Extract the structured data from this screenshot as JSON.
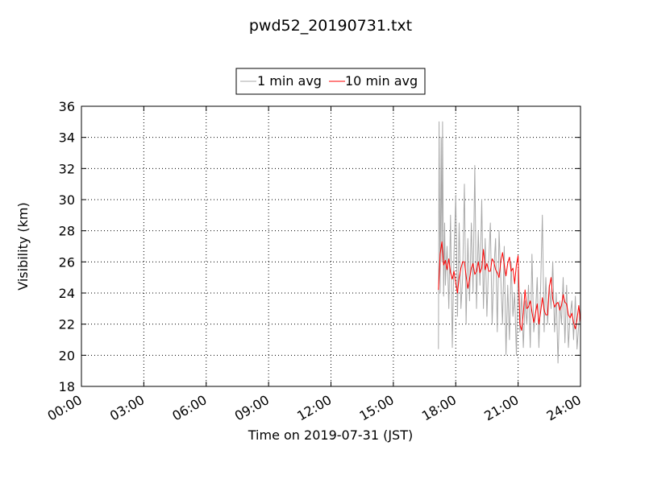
{
  "chart_data": {
    "type": "line",
    "title": "pwd52_20190731.txt",
    "xlabel": "Time on 2019-07-31 (JST)",
    "ylabel": "Visibility (km)",
    "xlim": [
      "00:00",
      "24:00"
    ],
    "ylim": [
      18,
      36
    ],
    "x_ticks": [
      "00:00",
      "03:00",
      "06:00",
      "09:00",
      "12:00",
      "15:00",
      "18:00",
      "21:00",
      "24:00"
    ],
    "y_ticks": [
      "18",
      "20",
      "22",
      "24",
      "26",
      "28",
      "30",
      "32",
      "34",
      "36"
    ],
    "grid": true,
    "legend_position": "top-center, above plot",
    "series": [
      {
        "name": "1 min avg",
        "color": "#a9a9a9",
        "x": [
          "17:10",
          "17:12",
          "17:15",
          "17:18",
          "17:20",
          "17:22",
          "17:25",
          "17:28",
          "17:30",
          "17:35",
          "17:40",
          "17:45",
          "17:50",
          "17:55",
          "18:00",
          "18:05",
          "18:10",
          "18:15",
          "18:20",
          "18:25",
          "18:30",
          "18:35",
          "18:40",
          "18:45",
          "18:50",
          "18:55",
          "19:00",
          "19:05",
          "19:10",
          "19:15",
          "19:20",
          "19:25",
          "19:30",
          "19:35",
          "19:40",
          "19:45",
          "19:50",
          "19:55",
          "20:00",
          "20:05",
          "20:10",
          "20:15",
          "20:20",
          "20:25",
          "20:30",
          "20:35",
          "20:40",
          "20:45",
          "20:50",
          "20:55",
          "21:00",
          "21:05",
          "21:10",
          "21:15",
          "21:20",
          "21:25",
          "21:30",
          "21:35",
          "21:40",
          "21:45",
          "21:50",
          "21:55",
          "22:00",
          "22:05",
          "22:10",
          "22:15",
          "22:20",
          "22:25",
          "22:30",
          "22:35",
          "22:40",
          "22:45",
          "22:50",
          "22:55",
          "23:00",
          "23:05",
          "23:10",
          "23:15",
          "23:20",
          "23:25",
          "23:30",
          "23:35",
          "23:40",
          "23:45",
          "23:50",
          "23:55",
          "24:00"
        ],
        "y": [
          20.4,
          35.0,
          24.0,
          34.0,
          26.0,
          35.0,
          23.8,
          28.5,
          24.5,
          27.0,
          23.0,
          29.0,
          20.5,
          26.5,
          30.3,
          22.5,
          28.5,
          23.0,
          25.0,
          31.0,
          22.0,
          27.5,
          23.5,
          28.5,
          24.0,
          32.2,
          23.0,
          28.0,
          24.5,
          30.0,
          23.0,
          27.5,
          22.5,
          26.0,
          28.5,
          22.0,
          25.5,
          27.5,
          21.5,
          28.0,
          25.0,
          22.0,
          27.0,
          20.0,
          24.5,
          21.0,
          26.0,
          22.5,
          24.0,
          20.0,
          25.5,
          21.5,
          24.0,
          20.5,
          23.5,
          22.0,
          24.5,
          20.5,
          26.5,
          21.5,
          22.5,
          25.0,
          20.5,
          24.5,
          29.0,
          21.5,
          25.0,
          22.0,
          24.5,
          23.0,
          26.0,
          21.5,
          24.0,
          19.5,
          23.5,
          22.0,
          25.0,
          20.8,
          24.5,
          20.5,
          22.5,
          23.5,
          21.0,
          23.8,
          20.4,
          22.0,
          23.0
        ]
      },
      {
        "name": "10 min avg",
        "color": "#ff0000",
        "x": [
          "17:10",
          "17:15",
          "17:20",
          "17:25",
          "17:30",
          "17:35",
          "17:40",
          "17:45",
          "17:50",
          "17:55",
          "18:00",
          "18:05",
          "18:10",
          "18:15",
          "18:20",
          "18:25",
          "18:30",
          "18:35",
          "18:40",
          "18:45",
          "18:50",
          "18:55",
          "19:00",
          "19:05",
          "19:10",
          "19:15",
          "19:20",
          "19:25",
          "19:30",
          "19:35",
          "19:40",
          "19:45",
          "19:50",
          "19:55",
          "20:00",
          "20:05",
          "20:10",
          "20:15",
          "20:20",
          "20:25",
          "20:30",
          "20:35",
          "20:40",
          "20:45",
          "20:50",
          "20:55",
          "21:00",
          "21:05",
          "21:10",
          "21:15",
          "21:20",
          "21:25",
          "21:30",
          "21:35",
          "21:40",
          "21:45",
          "21:50",
          "21:55",
          "22:00",
          "22:05",
          "22:10",
          "22:15",
          "22:20",
          "22:25",
          "22:30",
          "22:35",
          "22:40",
          "22:45",
          "22:50",
          "22:55",
          "23:00",
          "23:05",
          "23:10",
          "23:15",
          "23:20",
          "23:25",
          "23:30",
          "23:35",
          "23:40",
          "23:45",
          "23:50",
          "23:55",
          "24:00"
        ],
        "y": [
          24.2,
          26.5,
          27.3,
          25.8,
          26.1,
          25.5,
          26.2,
          25.3,
          24.9,
          25.4,
          24.6,
          24.0,
          25.0,
          25.6,
          26.0,
          26.0,
          25.1,
          24.3,
          24.9,
          25.6,
          25.9,
          25.2,
          25.4,
          26.0,
          25.3,
          25.6,
          26.8,
          25.5,
          25.9,
          25.4,
          25.4,
          26.2,
          26.0,
          25.5,
          25.3,
          25.0,
          26.0,
          26.6,
          25.8,
          25.1,
          25.9,
          26.3,
          25.4,
          25.6,
          24.6,
          25.8,
          26.4,
          22.0,
          21.6,
          22.7,
          24.2,
          23.0,
          23.1,
          23.5,
          22.8,
          22.1,
          22.7,
          23.3,
          22.0,
          22.8,
          23.7,
          22.9,
          22.6,
          22.6,
          24.4,
          25.0,
          23.6,
          23.1,
          23.3,
          23.4,
          22.9,
          23.2,
          23.9,
          23.4,
          23.3,
          22.6,
          22.4,
          22.7,
          22.1,
          21.7,
          22.3,
          23.2,
          22.1
        ]
      }
    ]
  }
}
